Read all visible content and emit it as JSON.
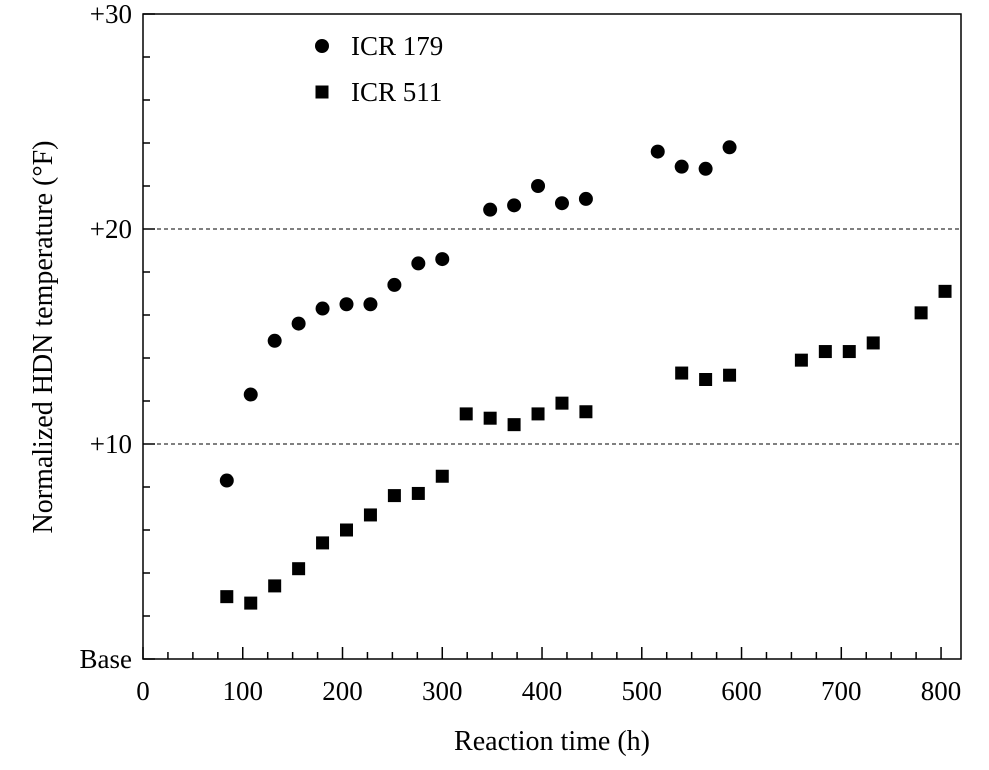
{
  "chart_data": {
    "type": "scatter",
    "xlabel": "Reaction time (h)",
    "ylabel": "Normalized HDN temperature (°F)",
    "xlim": [
      0,
      820
    ],
    "ylim": [
      0,
      30
    ],
    "x_ticks": [
      0,
      100,
      200,
      300,
      400,
      500,
      600,
      700,
      800
    ],
    "x_tick_labels": [
      "0",
      "100",
      "200",
      "300",
      "400",
      "500",
      "600",
      "700",
      "800"
    ],
    "y_ticks": [
      0,
      10,
      20,
      30
    ],
    "y_tick_labels": [
      "Base",
      "+10",
      "+20",
      "+30"
    ],
    "gridlines_y": [
      10,
      20
    ],
    "grid_style": "dashed horizontal at +10 and +20",
    "legend_position": "top-left",
    "series": [
      {
        "name": "ICR 179",
        "marker": "circle",
        "color": "#000000",
        "x": [
          84,
          108,
          132,
          156,
          180,
          204,
          228,
          252,
          276,
          300,
          348,
          372,
          396,
          420,
          444,
          516,
          540,
          564,
          588
        ],
        "y": [
          8.3,
          12.3,
          14.8,
          15.6,
          16.3,
          16.5,
          16.5,
          17.4,
          18.4,
          18.6,
          20.9,
          21.1,
          22.0,
          21.2,
          21.4,
          23.6,
          22.9,
          22.8,
          23.8
        ]
      },
      {
        "name": "ICR 511",
        "marker": "square",
        "color": "#000000",
        "x": [
          84,
          108,
          132,
          156,
          180,
          204,
          228,
          252,
          276,
          300,
          324,
          348,
          372,
          396,
          420,
          444,
          540,
          564,
          588,
          660,
          684,
          708,
          732,
          780,
          804
        ],
        "y": [
          2.9,
          2.6,
          3.4,
          4.2,
          5.4,
          6.0,
          6.7,
          7.6,
          7.7,
          8.5,
          11.4,
          11.2,
          10.9,
          11.4,
          11.9,
          11.5,
          13.3,
          13.0,
          13.2,
          13.9,
          14.3,
          14.3,
          14.7,
          16.1,
          17.1
        ]
      }
    ]
  }
}
